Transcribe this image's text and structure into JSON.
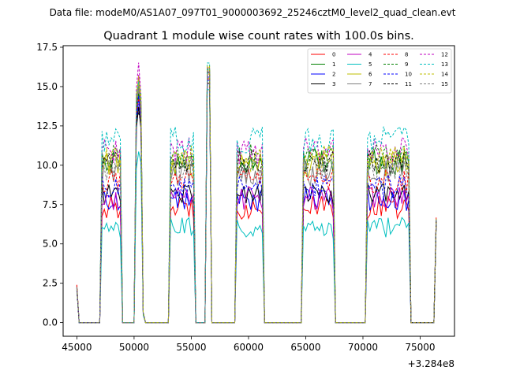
{
  "chart_data": {
    "type": "line",
    "suptitle": "Data file: modeM0/AS1A07_097T01_9000003692_25246cztM0_level2_quad_clean.evt",
    "title": "Quadrant 1 module wise count rates with 100.0s bins.",
    "xlabel": "",
    "ylabel": "",
    "x_offset_label": "+3.284e8",
    "xlim": [
      43800,
      78000
    ],
    "ylim": [
      -0.87,
      17.6
    ],
    "x_ticks": [
      45000,
      50000,
      55000,
      60000,
      65000,
      70000,
      75000
    ],
    "x_tick_labels": [
      "45000",
      "50000",
      "55000",
      "60000",
      "65000",
      "70000",
      "75000"
    ],
    "y_ticks": [
      0.0,
      2.5,
      5.0,
      7.5,
      10.0,
      12.5,
      15.0,
      17.5
    ],
    "y_tick_labels": [
      "0.0",
      "2.5",
      "5.0",
      "7.5",
      "10.0",
      "12.5",
      "15.0",
      "17.5"
    ],
    "legend_position": "top-right",
    "time_bin_seconds": 100,
    "orbit_segments": [
      {
        "start": 47200,
        "end": 48900
      },
      {
        "start": 53100,
        "end": 55300
      },
      {
        "start": 58900,
        "end": 61300
      },
      {
        "start": 64800,
        "end": 67500
      },
      {
        "start": 70400,
        "end": 74000
      }
    ],
    "spikes": [
      {
        "start": 50100,
        "end": 50900,
        "peak_x": 50400
      },
      {
        "start": 56400,
        "end": 56700,
        "peak_x": 56550
      }
    ],
    "edge_points": [
      {
        "x": 45000,
        "value": 2.2
      },
      {
        "x": 76500,
        "value": 6.5
      }
    ],
    "series": [
      {
        "name": "0",
        "color": "#ff0000",
        "dash": "solid",
        "level": 7.3,
        "spike_peak": 14.5,
        "spike2_peak": 15.5,
        "spike_shoulder": 11.5
      },
      {
        "name": "1",
        "color": "#008000",
        "dash": "solid",
        "level": 10.2,
        "spike_peak": 14.8,
        "spike2_peak": 16.0,
        "spike_shoulder": 12.5
      },
      {
        "name": "2",
        "color": "#0000ff",
        "dash": "solid",
        "level": 7.8,
        "spike_peak": 14.2,
        "spike2_peak": 15.4,
        "spike_shoulder": 11.2
      },
      {
        "name": "3",
        "color": "#000000",
        "dash": "solid",
        "level": 8.2,
        "spike_peak": 13.4,
        "spike2_peak": 15.2,
        "spike_shoulder": 11.8
      },
      {
        "name": "4",
        "color": "#c000c0",
        "dash": "solid",
        "level": 7.9,
        "spike_peak": 15.4,
        "spike2_peak": 15.6,
        "spike_shoulder": 12.0
      },
      {
        "name": "5",
        "color": "#00bfbf",
        "dash": "solid",
        "level": 6.0,
        "spike_peak": 10.5,
        "spike2_peak": 14.8,
        "spike_shoulder": 9.5
      },
      {
        "name": "6",
        "color": "#bfbf00",
        "dash": "solid",
        "level": 10.1,
        "spike_peak": 15.0,
        "spike2_peak": 16.2,
        "spike_shoulder": 12.4
      },
      {
        "name": "7",
        "color": "#808080",
        "dash": "solid",
        "level": 9.5,
        "spike_peak": 15.2,
        "spike2_peak": 16.0,
        "spike_shoulder": 12.2
      },
      {
        "name": "8",
        "color": "#ff0000",
        "dash": "dashed",
        "level": 9.0,
        "spike_peak": 14.6,
        "spike2_peak": 15.8,
        "spike_shoulder": 11.9
      },
      {
        "name": "9",
        "color": "#008000",
        "dash": "dashed",
        "level": 10.5,
        "spike_peak": 14.9,
        "spike2_peak": 16.1,
        "spike_shoulder": 12.6
      },
      {
        "name": "10",
        "color": "#0000ff",
        "dash": "dashed",
        "level": 8.6,
        "spike_peak": 14.4,
        "spike2_peak": 15.6,
        "spike_shoulder": 11.6
      },
      {
        "name": "11",
        "color": "#000000",
        "dash": "dashed",
        "level": 10.2,
        "spike_peak": 13.6,
        "spike2_peak": 15.9,
        "spike_shoulder": 12.3
      },
      {
        "name": "12",
        "color": "#c000c0",
        "dash": "dashed",
        "level": 10.9,
        "spike_peak": 16.8,
        "spike2_peak": 16.2,
        "spike_shoulder": 12.8
      },
      {
        "name": "13",
        "color": "#00bfbf",
        "dash": "dashed",
        "level": 11.6,
        "spike_peak": 15.6,
        "spike2_peak": 16.5,
        "spike_shoulder": 13.0
      },
      {
        "name": "14",
        "color": "#bfbf00",
        "dash": "dashed",
        "level": 10.4,
        "spike_peak": 15.9,
        "spike2_peak": 16.3,
        "spike_shoulder": 12.7
      },
      {
        "name": "15",
        "color": "#808080",
        "dash": "dashed",
        "level": 9.8,
        "spike_peak": 15.3,
        "spike2_peak": 16.0,
        "spike_shoulder": 12.5
      }
    ]
  }
}
